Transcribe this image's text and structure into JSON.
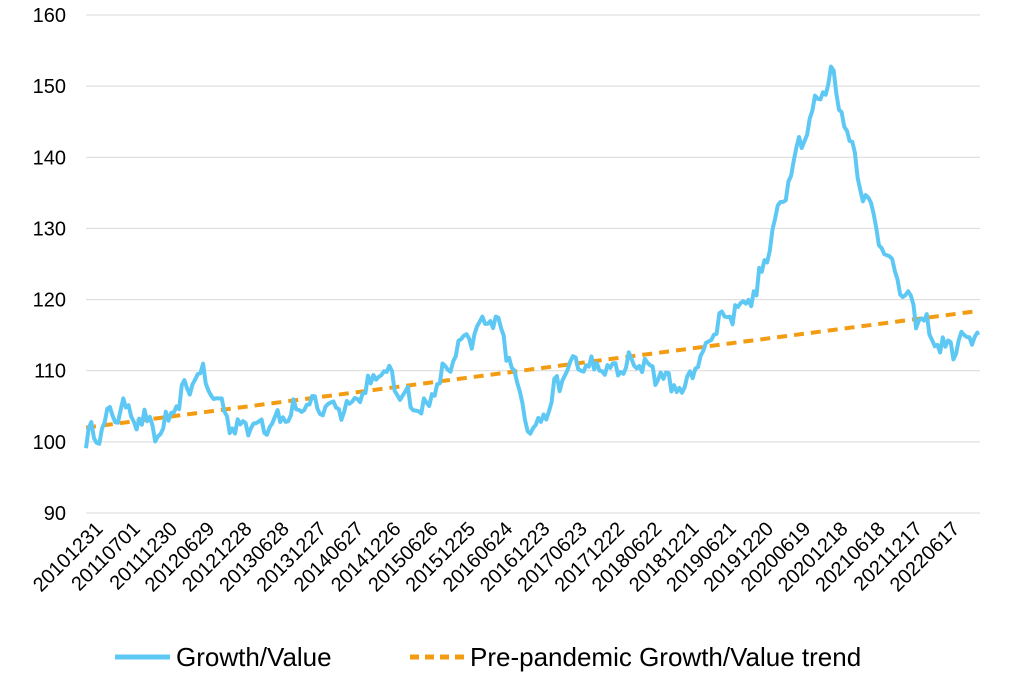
{
  "chart_data": {
    "type": "line",
    "title": "",
    "xlabel": "",
    "ylabel": "",
    "ylim": [
      90,
      160
    ],
    "yticks": [
      90,
      100,
      110,
      120,
      130,
      140,
      150,
      160
    ],
    "grid": true,
    "legend_position": "bottom",
    "colors": {
      "growth": "#5ec8f5",
      "trend": "#f39c12",
      "grid": "#d9d9d9"
    },
    "categories": [
      "20101231",
      "20110701",
      "20111230",
      "20120629",
      "20121228",
      "20130628",
      "20131227",
      "20140627",
      "20141226",
      "20150626",
      "20151225",
      "20160624",
      "20161223",
      "20170623",
      "20171222",
      "20180622",
      "20181221",
      "20190621",
      "20191220",
      "20200619",
      "20201218",
      "20210618",
      "20211217",
      "20220617"
    ],
    "series": [
      {
        "name": "Growth/Value",
        "style": "solid",
        "values": [
          100,
          105,
          101,
          110,
          102,
          103,
          105,
          105,
          110,
          104,
          113,
          118,
          101,
          111,
          110,
          111,
          107,
          117,
          121,
          140,
          152,
          133,
          120,
          113
        ],
        "end_value": 115
      },
      {
        "name": "Pre-pandemic Growth/Value trend",
        "style": "dashed",
        "values": [
          102,
          102.7,
          103.4,
          104.1,
          104.8,
          105.5,
          106.2,
          106.9,
          107.6,
          108.3,
          109.0,
          109.7,
          110.4,
          111.1,
          111.8,
          112.5,
          113.2,
          113.9,
          114.6,
          115.3,
          116.0,
          116.7,
          117.4,
          118.1
        ],
        "end_value": 118.4
      }
    ]
  }
}
